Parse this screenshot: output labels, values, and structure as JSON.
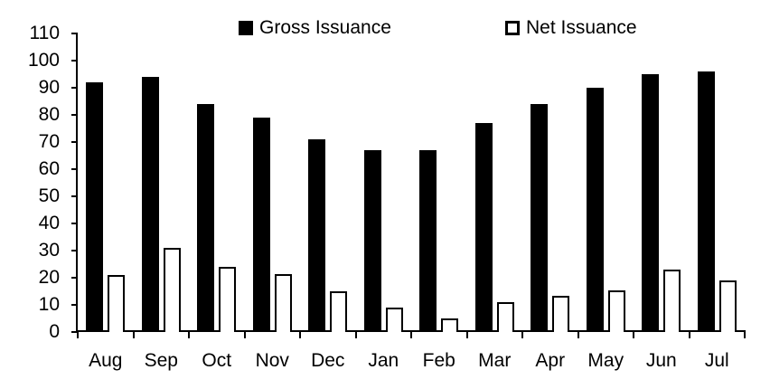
{
  "chart_data": {
    "type": "bar",
    "title": "",
    "xlabel": "",
    "ylabel": "",
    "categories": [
      "Aug",
      "Sep",
      "Oct",
      "Nov",
      "Dec",
      "Jan",
      "Feb",
      "Mar",
      "Apr",
      "May",
      "Jun",
      "Jul"
    ],
    "series": [
      {
        "name": "Gross Issuance",
        "color": "#000000",
        "values": [
          92,
          94,
          84,
          79,
          71,
          67,
          67,
          77,
          84,
          90,
          95,
          96
        ]
      },
      {
        "name": "Net Issuance",
        "color": "#FFFFFF",
        "border_color": "#000000",
        "values": [
          21,
          31,
          24,
          21.5,
          15,
          9,
          5,
          11,
          13.5,
          15.5,
          23,
          19
        ]
      }
    ],
    "ylim": [
      0,
      110
    ],
    "ytick_step": 10,
    "grid": false,
    "legend_position": "top",
    "axis_color": "#000000",
    "background_color": "#FFFFFF"
  }
}
